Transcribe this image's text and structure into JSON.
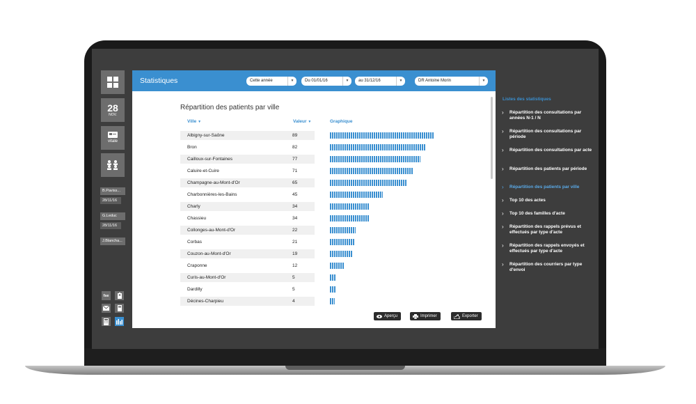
{
  "app": {
    "title": "Statistiques"
  },
  "sidebar": {
    "date_day": "28",
    "date_month": "NOV.",
    "vitale_label": "vitale",
    "patients": [
      {
        "name": "B.Paviss...",
        "date": "28/11/16"
      },
      {
        "name": "G.Leduc",
        "date": "28/11/16"
      },
      {
        "name": "J.Blancha..."
      }
    ],
    "bottom": {
      "fse_label": "fse"
    }
  },
  "filters": {
    "period": "Cette année",
    "from": "Du 01/01/16",
    "to": "au 31/12/16",
    "doctor": "DR Antoine Morin"
  },
  "table": {
    "title": "Répartition des patients par ville",
    "col_city": "Ville",
    "col_value": "Valeur",
    "col_chart": "Graphique",
    "rows": [
      {
        "city": "Albigny-sur-Saône",
        "value": 89
      },
      {
        "city": "Bron",
        "value": 82
      },
      {
        "city": "Cailloux-sur-Fontaines",
        "value": 77
      },
      {
        "city": "Caluire-et-Cuire",
        "value": 71
      },
      {
        "city": "Champagne-au-Mont-d'Or",
        "value": 65
      },
      {
        "city": "Charbonnières-les-Bains",
        "value": 45
      },
      {
        "city": "Charly",
        "value": 34
      },
      {
        "city": "Chassieu",
        "value": 34
      },
      {
        "city": "Collonges-au-Mont-d'Or",
        "value": 22
      },
      {
        "city": "Corbas",
        "value": 21
      },
      {
        "city": "Couzon-au-Mont-d'Or",
        "value": 19
      },
      {
        "city": "Craponne",
        "value": 12
      },
      {
        "city": "Curis-au-Mont-d'Or",
        "value": 5
      },
      {
        "city": "Dardilly",
        "value": 5
      },
      {
        "city": "Décines-Charpieu",
        "value": 4
      }
    ]
  },
  "actions": {
    "preview": "Aperçu",
    "print": "Imprimer",
    "export": "Exporter"
  },
  "stats_list": {
    "title": "Listes des statistiques",
    "items": [
      {
        "label": "Répartition des consultations par années N-1 / N",
        "active": false
      },
      {
        "label": "Répartition des consultations par période",
        "active": false
      },
      {
        "label": "Répartition des consultations par acte",
        "active": false
      },
      {
        "label": "Répartition des patients par période",
        "active": false
      },
      {
        "label": "Répartition des patients par ville",
        "active": true
      },
      {
        "label": "Top 10 des actes",
        "active": false
      },
      {
        "label": "Top 10 des familles d'acte",
        "active": false
      },
      {
        "label": "Répartition des rappels prévus et effectués par type d'acte",
        "active": false
      },
      {
        "label": "Répartition des rappels envoyés et effectués par type d'acte",
        "active": false
      },
      {
        "label": "Répartition des courriers par type d'envoi",
        "active": false
      }
    ]
  },
  "colors": {
    "accent": "#3a8fd0",
    "sidebar_bg": "#3d3d3d",
    "active_item": "#5aaae8"
  }
}
